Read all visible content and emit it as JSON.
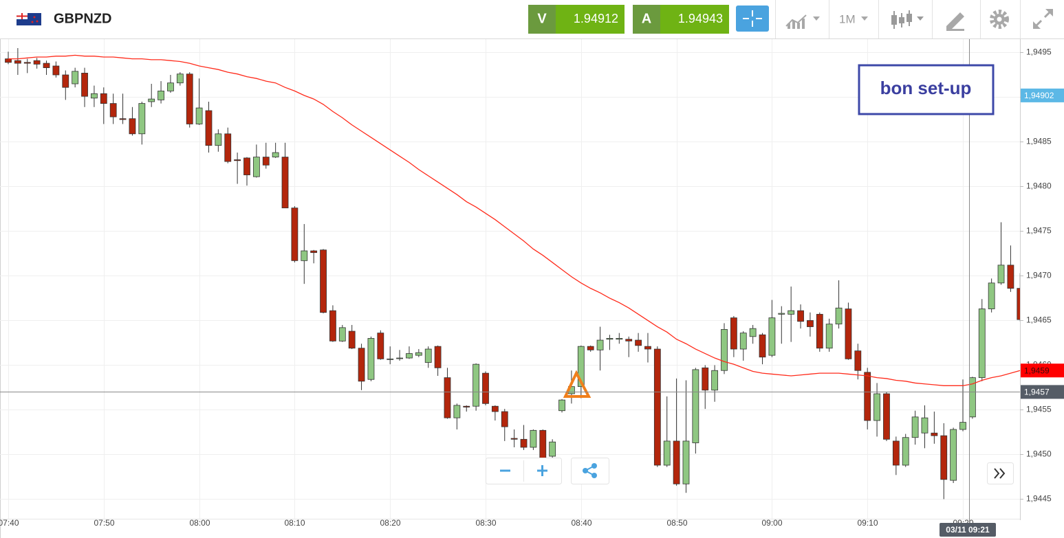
{
  "header": {
    "symbol": "GBPNZD",
    "sell_label": "V",
    "sell": 1.94912,
    "buy_label": "A",
    "buy": 1.94943,
    "timeframe": "1M"
  },
  "chart_data": {
    "type": "candlestick",
    "categories": [
      "07:40",
      null,
      null,
      null,
      null,
      null,
      null,
      null,
      null,
      null,
      "07:50",
      null,
      null,
      null,
      null,
      null,
      null,
      null,
      null,
      null,
      "08:00",
      null,
      null,
      null,
      null,
      null,
      null,
      null,
      null,
      null,
      "08:10",
      null,
      null,
      null,
      null,
      null,
      null,
      null,
      null,
      null,
      "08:20",
      null,
      null,
      null,
      null,
      null,
      null,
      null,
      null,
      null,
      "08:30",
      null,
      null,
      null,
      null,
      null,
      null,
      null,
      null,
      null,
      "08:40",
      null,
      null,
      null,
      null,
      null,
      null,
      null,
      null,
      null,
      "08:50",
      null,
      null,
      null,
      null,
      null,
      null,
      null,
      null,
      null,
      "09:00",
      null,
      null,
      null,
      null,
      null,
      null,
      null,
      null,
      null,
      "09:10",
      null,
      null,
      null,
      null,
      null,
      null,
      null,
      null,
      null,
      "09:20",
      null,
      null,
      null,
      null,
      null,
      null
    ],
    "open": [
      1.94943,
      1.94941,
      1.94939,
      1.94941,
      1.94938,
      1.94935,
      1.94925,
      1.94915,
      1.94927,
      1.94899,
      1.94904,
      1.94893,
      1.94876,
      1.94876,
      1.94859,
      1.94895,
      1.94897,
      1.94907,
      1.94916,
      1.94926,
      1.9487,
      1.94885,
      1.94846,
      1.94859,
      1.9483,
      1.94832,
      1.94811,
      1.94833,
      1.94833,
      1.94833,
      1.94776,
      1.94717,
      1.94728,
      1.94729,
      1.94661,
      1.94627,
      1.94638,
      1.94619,
      1.94584,
      1.94636,
      1.94607,
      1.94608,
      1.94608,
      1.94611,
      1.94603,
      1.94621,
      1.94586,
      1.94541,
      1.94554,
      1.94554,
      1.94591,
      1.94554,
      1.94548,
      1.94518,
      1.94517,
      1.94508,
      1.94527,
      1.94498,
      1.94549,
      1.94568,
      1.94576,
      1.94621,
      1.94617,
      1.94629,
      1.94629,
      1.94629,
      1.94628,
      1.94621,
      1.94618,
      1.94488,
      1.94515,
      1.94467,
      1.94513,
      1.94597,
      1.94572,
      1.94594,
      1.94653,
      1.94618,
      1.94632,
      1.94634,
      1.94611,
      1.94657,
      1.94657,
      1.94661,
      1.9465,
      1.94657,
      1.94619,
      1.94646,
      1.94663,
      1.94616,
      1.94592,
      1.94538,
      1.94568,
      1.94515,
      1.94488,
      1.94519,
      1.94524,
      1.94524,
      1.94521,
      1.94471,
      1.94528,
      1.94542,
      1.94586,
      1.94663,
      1.94692,
      1.94712,
      1.94686
    ],
    "high": [
      1.94951,
      1.94955,
      1.94943,
      1.94944,
      1.94941,
      1.9494,
      1.9493,
      1.94933,
      1.94933,
      1.94913,
      1.94911,
      1.94904,
      1.94904,
      1.94889,
      1.94895,
      1.94915,
      1.94918,
      1.94925,
      1.94928,
      1.94928,
      1.94921,
      1.94895,
      1.94864,
      1.94866,
      1.94838,
      1.94833,
      1.94847,
      1.94849,
      1.94849,
      1.94849,
      1.94778,
      1.94758,
      1.94729,
      1.9473,
      1.94667,
      1.94645,
      1.94645,
      1.94624,
      1.94632,
      1.94639,
      1.94621,
      1.94617,
      1.94621,
      1.94618,
      1.94621,
      1.94622,
      1.94597,
      1.94557,
      1.94555,
      1.94602,
      1.94593,
      1.94555,
      1.94551,
      1.94528,
      1.94533,
      1.94528,
      1.94528,
      1.94517,
      1.94562,
      1.94594,
      1.94622,
      1.94622,
      1.94643,
      1.94634,
      1.94636,
      1.94632,
      1.94636,
      1.94636,
      1.94621,
      1.94565,
      1.94585,
      1.94583,
      1.94597,
      1.946,
      1.946,
      1.94647,
      1.94655,
      1.94638,
      1.94645,
      1.94636,
      1.94673,
      1.94666,
      1.94688,
      1.94668,
      1.94659,
      1.94659,
      1.94652,
      1.94695,
      1.9467,
      1.94624,
      1.94597,
      1.9458,
      1.9457,
      1.9452,
      1.94523,
      1.94549,
      1.94555,
      1.94548,
      1.94535,
      1.9453,
      1.94584,
      1.94587,
      1.94674,
      1.94697,
      1.9476,
      1.94734,
      1.94703
    ],
    "low": [
      1.94937,
      1.94925,
      1.94927,
      1.94932,
      1.94925,
      1.94922,
      1.94897,
      1.94911,
      1.94889,
      1.94889,
      1.9487,
      1.9487,
      1.9487,
      1.94857,
      1.94847,
      1.94889,
      1.94893,
      1.94905,
      1.94913,
      1.94866,
      1.94869,
      1.94838,
      1.94839,
      1.94826,
      1.94803,
      1.94801,
      1.9481,
      1.9482,
      1.94832,
      1.94776,
      1.94715,
      1.94691,
      1.94714,
      1.94658,
      1.94626,
      1.94626,
      1.94618,
      1.94572,
      1.94582,
      1.94606,
      1.94601,
      1.94605,
      1.94607,
      1.94609,
      1.94597,
      1.94588,
      1.9454,
      1.94528,
      1.94548,
      1.94549,
      1.94555,
      1.94538,
      1.94515,
      1.94508,
      1.94505,
      1.94505,
      1.94494,
      1.94495,
      1.94547,
      1.94557,
      1.94563,
      1.94615,
      1.94594,
      1.94617,
      1.94624,
      1.94609,
      1.94615,
      1.94603,
      1.94486,
      1.94486,
      1.94465,
      1.94457,
      1.94501,
      1.94551,
      1.94559,
      1.9459,
      1.94609,
      1.94605,
      1.94624,
      1.94601,
      1.94609,
      1.94624,
      1.94626,
      1.94641,
      1.94632,
      1.94615,
      1.94615,
      1.94641,
      1.94606,
      1.94584,
      1.94528,
      1.9452,
      1.94515,
      1.94477,
      1.94486,
      1.94511,
      1.94507,
      1.94512,
      1.9445,
      1.94468,
      1.94526,
      1.9454,
      1.94582,
      1.94659,
      1.9469,
      1.94682,
      1.94649
    ],
    "close": [
      1.94939,
      1.94938,
      1.94938,
      1.94937,
      1.94933,
      1.94925,
      1.94911,
      1.94929,
      1.94901,
      1.94904,
      1.94893,
      1.94878,
      1.94875,
      1.94859,
      1.94893,
      1.94898,
      1.94907,
      1.94916,
      1.94926,
      1.9487,
      1.94888,
      1.94846,
      1.94859,
      1.94828,
      1.94829,
      1.94813,
      1.94833,
      1.94824,
      1.94838,
      1.94776,
      1.94717,
      1.94728,
      1.94726,
      1.94659,
      1.94627,
      1.94642,
      1.94619,
      1.94582,
      1.9463,
      1.94607,
      1.94607,
      1.94608,
      1.94613,
      1.94614,
      1.94618,
      1.94597,
      1.94541,
      1.94555,
      1.94553,
      1.94601,
      1.94557,
      1.94548,
      1.94531,
      1.94517,
      1.94508,
      1.94527,
      1.94495,
      1.94514,
      1.94561,
      1.94576,
      1.94621,
      1.94617,
      1.94628,
      1.9463,
      1.9463,
      1.94627,
      1.94622,
      1.94618,
      1.94488,
      1.94515,
      1.94467,
      1.94515,
      1.94595,
      1.94572,
      1.94594,
      1.9464,
      1.94618,
      1.94636,
      1.94641,
      1.94609,
      1.94653,
      1.94658,
      1.94661,
      1.94649,
      1.94643,
      1.94619,
      1.94646,
      1.94664,
      1.94607,
      1.94594,
      1.94538,
      1.94568,
      1.94517,
      1.94488,
      1.94519,
      1.94542,
      1.94541,
      1.94521,
      1.94472,
      1.94528,
      1.94536,
      1.94586,
      1.94663,
      1.94692,
      1.94712,
      1.94686,
      1.94651
    ],
    "up_color": "#8fc782",
    "down_color": "#b3260c",
    "moving_average": {
      "color": "#ff2a1a",
      "values": [
        1.94943,
        1.94943,
        1.94944,
        1.94945,
        1.94945,
        1.94946,
        1.94946,
        1.94947,
        1.94946,
        1.94946,
        1.94945,
        1.94945,
        1.94944,
        1.94943,
        1.94943,
        1.94942,
        1.94942,
        1.94941,
        1.9494,
        1.94938,
        1.94935,
        1.94933,
        1.94931,
        1.94928,
        1.94926,
        1.94923,
        1.94921,
        1.94918,
        1.94916,
        1.94911,
        1.94907,
        1.94902,
        1.94898,
        1.94892,
        1.94884,
        1.94877,
        1.94869,
        1.94862,
        1.94855,
        1.94848,
        1.94841,
        1.94834,
        1.94827,
        1.94819,
        1.94812,
        1.94805,
        1.94798,
        1.94791,
        1.94783,
        1.94777,
        1.9477,
        1.94763,
        1.94755,
        1.94747,
        1.94739,
        1.9473,
        1.94723,
        1.94715,
        1.94707,
        1.94699,
        1.94692,
        1.94686,
        1.94681,
        1.94675,
        1.9467,
        1.94664,
        1.94657,
        1.9465,
        1.94643,
        1.94637,
        1.94629,
        1.94624,
        1.94618,
        1.94613,
        1.94608,
        1.94604,
        1.94601,
        1.94597,
        1.94593,
        1.94591,
        1.9459,
        1.94589,
        1.94588,
        1.94589,
        1.9459,
        1.94591,
        1.94591,
        1.94591,
        1.9459,
        1.94589,
        1.94588,
        1.94586,
        1.94585,
        1.94583,
        1.94582,
        1.9458,
        1.94579,
        1.94578,
        1.94577,
        1.94577,
        1.94577,
        1.94579,
        1.94583,
        1.94586,
        1.94588,
        1.94591,
        1.94594
      ]
    },
    "ylim": [
      1.94428,
      1.94965
    ],
    "yticks": [
      {
        "value": 1.9445,
        "label": "1,9445"
      },
      {
        "value": 1.945,
        "label": "1,9450"
      },
      {
        "value": 1.9455,
        "label": "1,9455"
      },
      {
        "value": 1.946,
        "label": "1,9460"
      },
      {
        "value": 1.9465,
        "label": "1,9465"
      },
      {
        "value": 1.947,
        "label": "1,9470"
      },
      {
        "value": 1.9475,
        "label": "1,9475"
      },
      {
        "value": 1.948,
        "label": "1,9480"
      },
      {
        "value": 1.9485,
        "label": "1,9485"
      },
      {
        "value": 1.949,
        "label": "1,9490"
      },
      {
        "value": 1.9495,
        "label": "1,9495"
      }
    ],
    "grid": true,
    "price_tags": [
      {
        "value": 1.94902,
        "label": "1,94902",
        "color": "#5cb8e6",
        "text_color": "#ffffff"
      },
      {
        "value": 1.94594,
        "label": "1,9459",
        "color": "#ff0000",
        "text_color": "#3a0a0a"
      }
    ],
    "crosshair": {
      "value": 1.9457,
      "label": "1,9457",
      "time_label": "03/11 09:21"
    },
    "annotation": "bon set-up"
  }
}
